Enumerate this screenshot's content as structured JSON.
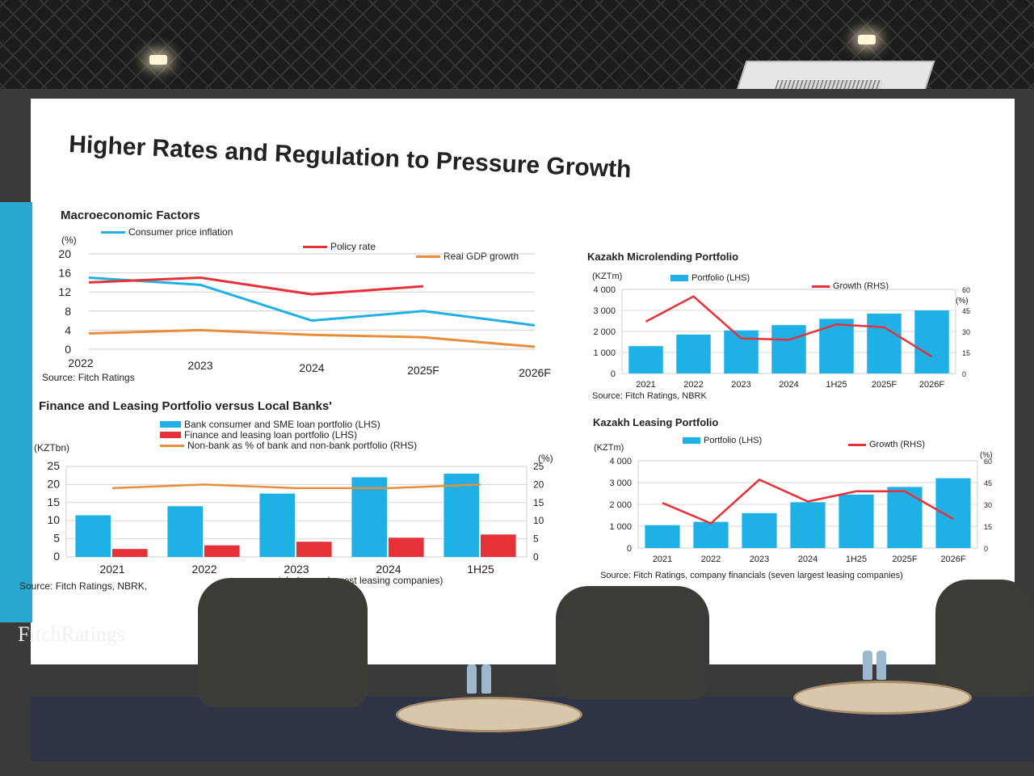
{
  "slide": {
    "title": "Higher Rates and Regulation to Pressure Growth",
    "brand": "FitchRatings"
  },
  "colors": {
    "blue": "#1fb1e6",
    "red": "#e53238",
    "orange": "#e88d3c"
  },
  "macro": {
    "title": "Macroeconomic Factors",
    "unit": "(%)",
    "legend": [
      "Consumer price inflation",
      "Policy rate",
      "Real GDP growth"
    ],
    "source": "Source: Fitch Ratings",
    "chart_data": {
      "type": "line",
      "title": "Macroeconomic Factors",
      "categories": [
        "2022",
        "2023",
        "2024",
        "2025F",
        "2026F"
      ],
      "ylim": [
        0,
        20
      ],
      "yticks": [
        "0",
        "4",
        "8",
        "12",
        "16",
        "20"
      ],
      "series": [
        {
          "name": "Consumer price inflation",
          "values": [
            15,
            13.5,
            6,
            8,
            5
          ]
        },
        {
          "name": "Policy rate",
          "values": [
            14,
            15,
            11.5,
            13.2,
            null
          ]
        },
        {
          "name": "Real GDP growth",
          "values": [
            3.3,
            4,
            3,
            2.5,
            0.5
          ]
        }
      ]
    }
  },
  "finance": {
    "title": "Finance and Leasing Portfolio versus Local Banks'",
    "unit_left": "(KZTbn)",
    "unit_right": "(%)",
    "legend": [
      "Bank consumer and SME loan portfolio (LHS)",
      "Finance and leasing loan portfolio (LHS)",
      "Non-bank as % of bank and non-bank portfolio (RHS)"
    ],
    "source": "Source: Fitch Ratings, NBRK,",
    "source_tail": "ials (seven largest leasing companies)",
    "chart_data": {
      "type": "bar",
      "title": "Finance and Leasing Portfolio versus Local Banks'",
      "categories": [
        "2021",
        "2022",
        "2023",
        "2024",
        "1H25"
      ],
      "ylim": [
        0,
        25
      ],
      "yticks": [
        "0",
        "5",
        "10",
        "15",
        "20",
        "25"
      ],
      "y2lim": [
        0,
        25
      ],
      "y2ticks": [
        "0",
        "5",
        "10",
        "15",
        "20",
        "25"
      ],
      "series": [
        {
          "name": "Bank consumer and SME loan portfolio (LHS)",
          "values": [
            11.5,
            14,
            17.5,
            22,
            23
          ]
        },
        {
          "name": "Finance and leasing loan portfolio (LHS)",
          "values": [
            2.2,
            3.2,
            4.2,
            5.3,
            6.2
          ]
        },
        {
          "name": "Non-bank as % of bank and non-bank portfolio (RHS)",
          "values": [
            19,
            20,
            19,
            19,
            20
          ]
        }
      ]
    }
  },
  "micro": {
    "title": "Kazakh Microlending Portfolio",
    "unit_left": "(KZTm)",
    "unit_right": "(%)",
    "legend": [
      "Portfolio (LHS)",
      "Growth (RHS)"
    ],
    "source": "Source: Fitch Ratings, NBRK",
    "chart_data": {
      "type": "bar",
      "title": "Kazakh Microlending Portfolio",
      "categories": [
        "2021",
        "2022",
        "2023",
        "2024",
        "1H25",
        "2025F",
        "2026F"
      ],
      "ylim": [
        0,
        4000
      ],
      "yticks": [
        "0",
        "1 000",
        "2 000",
        "3 000",
        "4 000"
      ],
      "y2lim": [
        0,
        60
      ],
      "y2ticks": [
        "0",
        "15",
        "30",
        "45",
        "60"
      ],
      "series": [
        {
          "name": "Portfolio (LHS)",
          "values": [
            1300,
            1850,
            2050,
            2300,
            2600,
            2850,
            3000
          ]
        },
        {
          "name": "Growth (RHS)",
          "values": [
            37,
            55,
            25,
            24,
            35,
            33,
            12
          ]
        }
      ]
    }
  },
  "leasing": {
    "title": "Kazakh Leasing Portfolio",
    "unit_left": "(KZTm)",
    "unit_right": "(%)",
    "legend": [
      "Portfolio (LHS)",
      "Growth (RHS)"
    ],
    "source": "Source: Fitch Ratings, company financials (seven largest leasing companies)",
    "chart_data": {
      "type": "bar",
      "title": "Kazakh Leasing Portfolio",
      "categories": [
        "2021",
        "2022",
        "2023",
        "2024",
        "1H25",
        "2025F",
        "2026F"
      ],
      "ylim": [
        0,
        4000
      ],
      "yticks": [
        "0",
        "1 000",
        "2 000",
        "3 000",
        "4 000"
      ],
      "y2lim": [
        0,
        60
      ],
      "y2ticks": [
        "0",
        "15",
        "30",
        "45",
        "60"
      ],
      "series": [
        {
          "name": "Portfolio (LHS)",
          "values": [
            1050,
            1200,
            1600,
            2100,
            2450,
            2800,
            3200
          ]
        },
        {
          "name": "Growth (RHS)",
          "values": [
            31,
            17,
            47,
            32,
            39,
            39,
            20
          ]
        }
      ]
    }
  }
}
